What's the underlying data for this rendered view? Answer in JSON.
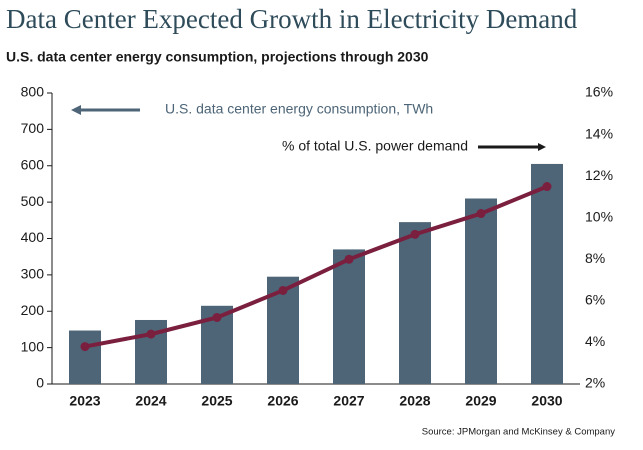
{
  "chart_data": {
    "type": "bar_line",
    "title": "Data Center Expected Growth in Electricity Demand",
    "subtitle": "U.S. data center energy consumption, projections through 2030",
    "source": "Source: JPMorgan and McKinsey & Company",
    "categories": [
      "2023",
      "2024",
      "2025",
      "2026",
      "2027",
      "2028",
      "2029",
      "2030"
    ],
    "series": [
      {
        "name": "U.S. data center energy consumption, TWh",
        "type": "bar",
        "color": "#4d6577",
        "values": [
          147,
          176,
          215,
          295,
          370,
          445,
          510,
          605
        ]
      },
      {
        "name": "% of total U.S. power demand",
        "type": "line",
        "axis": "y2",
        "color": "#7b1f3f",
        "values": [
          3.8,
          4.4,
          5.2,
          6.5,
          8.0,
          9.2,
          10.2,
          11.5
        ]
      }
    ],
    "ylim": [
      0,
      800
    ],
    "yticks": [
      0,
      100,
      200,
      300,
      400,
      500,
      600,
      700,
      800
    ],
    "y2lim": [
      2,
      16
    ],
    "y2ticks": [
      {
        "value": 2,
        "label": "2%"
      },
      {
        "value": 4,
        "label": "4%"
      },
      {
        "value": 6,
        "label": "6%"
      },
      {
        "value": 8,
        "label": "8%"
      },
      {
        "value": 10,
        "label": "10%"
      },
      {
        "value": 12,
        "label": "12%"
      },
      {
        "value": 14,
        "label": "14%"
      },
      {
        "value": 16,
        "label": "16%"
      }
    ]
  }
}
